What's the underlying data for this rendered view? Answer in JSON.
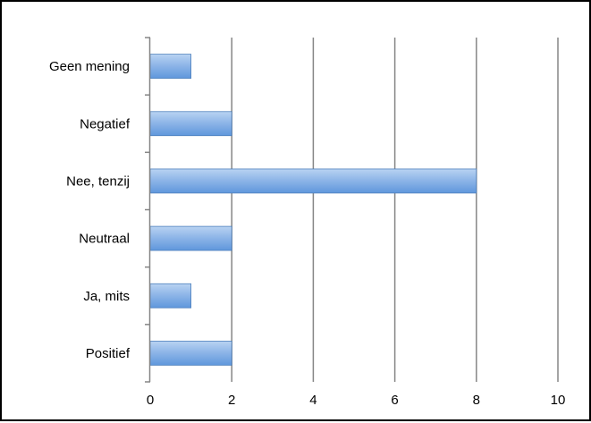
{
  "chart_data": {
    "type": "bar",
    "orientation": "horizontal",
    "categories": [
      "Geen mening",
      "Negatief",
      "Nee, tenzij",
      "Neutraal",
      "Ja, mits",
      "Positief"
    ],
    "values": [
      1,
      2,
      8,
      2,
      1,
      2
    ],
    "title": "",
    "xlabel": "",
    "ylabel": "",
    "xlim": [
      0,
      10
    ],
    "x_ticks": [
      "0",
      "2",
      "4",
      "6",
      "8",
      "10"
    ],
    "grid": "vertical",
    "legend": "none",
    "colors": {
      "bar_top": "#b9d3f2",
      "bar_bottom": "#5f97dc",
      "bar_border": "#4f81bd",
      "grid": "#868686",
      "axis": "#868686"
    }
  }
}
